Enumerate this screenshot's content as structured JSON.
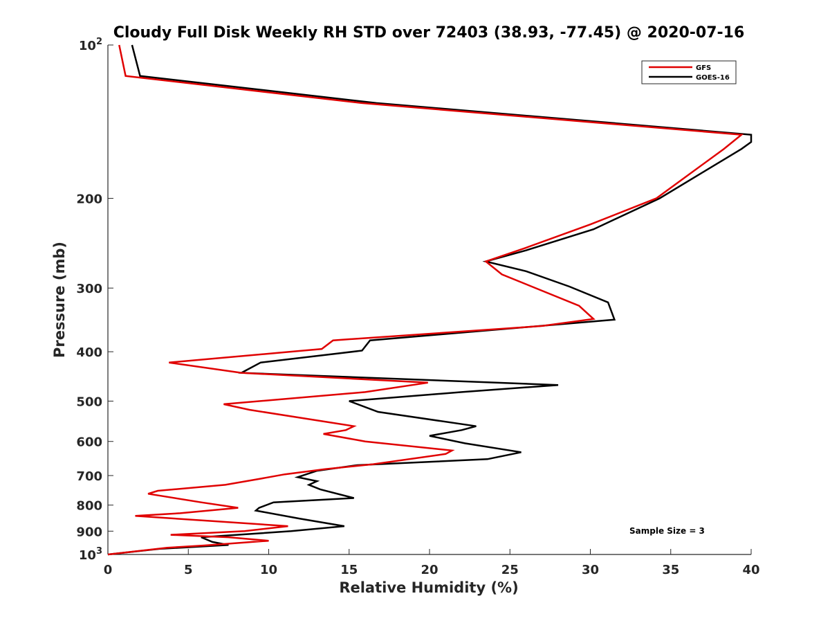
{
  "chart_data": {
    "type": "line",
    "title": "Cloudy Full Disk Weekly RH STD over 72403 (38.93, -77.45) @ 2020-07-16",
    "xlabel": "Relative Humidity (%)",
    "ylabel": "Pressure (mb)",
    "xlim": [
      0,
      40
    ],
    "ylim": [
      100,
      1000
    ],
    "yscale": "log",
    "y_reversed": true,
    "grid": false,
    "legend_position": "top-right",
    "x_ticks": [
      0,
      5,
      10,
      15,
      20,
      25,
      30,
      35,
      40
    ],
    "x_tick_labels": [
      "0",
      "5",
      "10",
      "15",
      "20",
      "25",
      "30",
      "35",
      "40"
    ],
    "y_ticks": [
      100,
      200,
      300,
      400,
      500,
      600,
      700,
      800,
      900,
      1000
    ],
    "y_tick_labels": [
      {
        "base": "10",
        "exp": "2"
      },
      {
        "base": "200",
        "exp": ""
      },
      {
        "base": "300",
        "exp": ""
      },
      {
        "base": "400",
        "exp": ""
      },
      {
        "base": "500",
        "exp": ""
      },
      {
        "base": "600",
        "exp": ""
      },
      {
        "base": "700",
        "exp": ""
      },
      {
        "base": "800",
        "exp": ""
      },
      {
        "base": "900",
        "exp": ""
      },
      {
        "base": "10",
        "exp": "3"
      }
    ],
    "annotation": "Sample Size = 3",
    "series": [
      {
        "name": "GFS",
        "color": "#e00000",
        "points": [
          [
            0.7,
            100
          ],
          [
            1.1,
            115
          ],
          [
            15.8,
            130
          ],
          [
            39.4,
            150
          ],
          [
            38.3,
            160
          ],
          [
            34.1,
            200
          ],
          [
            30.0,
            225
          ],
          [
            26.0,
            250
          ],
          [
            23.5,
            266
          ],
          [
            24.5,
            282
          ],
          [
            29.3,
            325
          ],
          [
            30.2,
            345
          ],
          [
            27.0,
            356
          ],
          [
            14.0,
            380
          ],
          [
            13.3,
            395
          ],
          [
            3.8,
            420
          ],
          [
            8.3,
            440
          ],
          [
            19.9,
            460
          ],
          [
            16.0,
            480
          ],
          [
            7.2,
            507
          ],
          [
            8.8,
            520
          ],
          [
            15.3,
            560
          ],
          [
            14.8,
            570
          ],
          [
            13.4,
            580
          ],
          [
            16.0,
            600
          ],
          [
            21.4,
            625
          ],
          [
            21.0,
            635
          ],
          [
            16.5,
            665
          ],
          [
            13.5,
            680
          ],
          [
            11.0,
            696
          ],
          [
            9.5,
            710
          ],
          [
            7.3,
            730
          ],
          [
            3.1,
            750
          ],
          [
            2.5,
            760
          ],
          [
            5.8,
            790
          ],
          [
            8.1,
            810
          ],
          [
            4.5,
            830
          ],
          [
            1.7,
            840
          ],
          [
            6.5,
            860
          ],
          [
            11.2,
            880
          ],
          [
            8.5,
            900
          ],
          [
            3.9,
            915
          ],
          [
            7.5,
            925
          ],
          [
            10.0,
            940
          ],
          [
            6.0,
            960
          ],
          [
            3.7,
            970
          ],
          [
            0.0,
            1000
          ]
        ]
      },
      {
        "name": "GOES-16",
        "color": "#000000",
        "points": [
          [
            1.5,
            100
          ],
          [
            2.0,
            115
          ],
          [
            16.7,
            130
          ],
          [
            40.0,
            150
          ],
          [
            40.0,
            155
          ],
          [
            39.4,
            160
          ],
          [
            34.3,
            200
          ],
          [
            30.2,
            230
          ],
          [
            26.0,
            253
          ],
          [
            23.5,
            266
          ],
          [
            26.0,
            278
          ],
          [
            28.7,
            298
          ],
          [
            31.1,
            320
          ],
          [
            31.5,
            346
          ],
          [
            16.3,
            380
          ],
          [
            15.8,
            398
          ],
          [
            9.5,
            420
          ],
          [
            8.3,
            440
          ],
          [
            28.0,
            465
          ],
          [
            22.0,
            480
          ],
          [
            15.0,
            500
          ],
          [
            16.8,
            525
          ],
          [
            22.9,
            560
          ],
          [
            22.0,
            570
          ],
          [
            20.0,
            585
          ],
          [
            22.2,
            605
          ],
          [
            25.7,
            630
          ],
          [
            23.6,
            650
          ],
          [
            15.5,
            668
          ],
          [
            13.0,
            685
          ],
          [
            11.8,
            705
          ],
          [
            13.0,
            718
          ],
          [
            12.5,
            730
          ],
          [
            13.2,
            745
          ],
          [
            15.3,
            775
          ],
          [
            10.3,
            790
          ],
          [
            9.4,
            810
          ],
          [
            9.2,
            820
          ],
          [
            11.9,
            850
          ],
          [
            14.7,
            880
          ],
          [
            11.4,
            900
          ],
          [
            5.8,
            925
          ],
          [
            6.5,
            945
          ],
          [
            7.5,
            958
          ],
          [
            3.2,
            975
          ],
          [
            0.0,
            1000
          ]
        ]
      }
    ]
  }
}
